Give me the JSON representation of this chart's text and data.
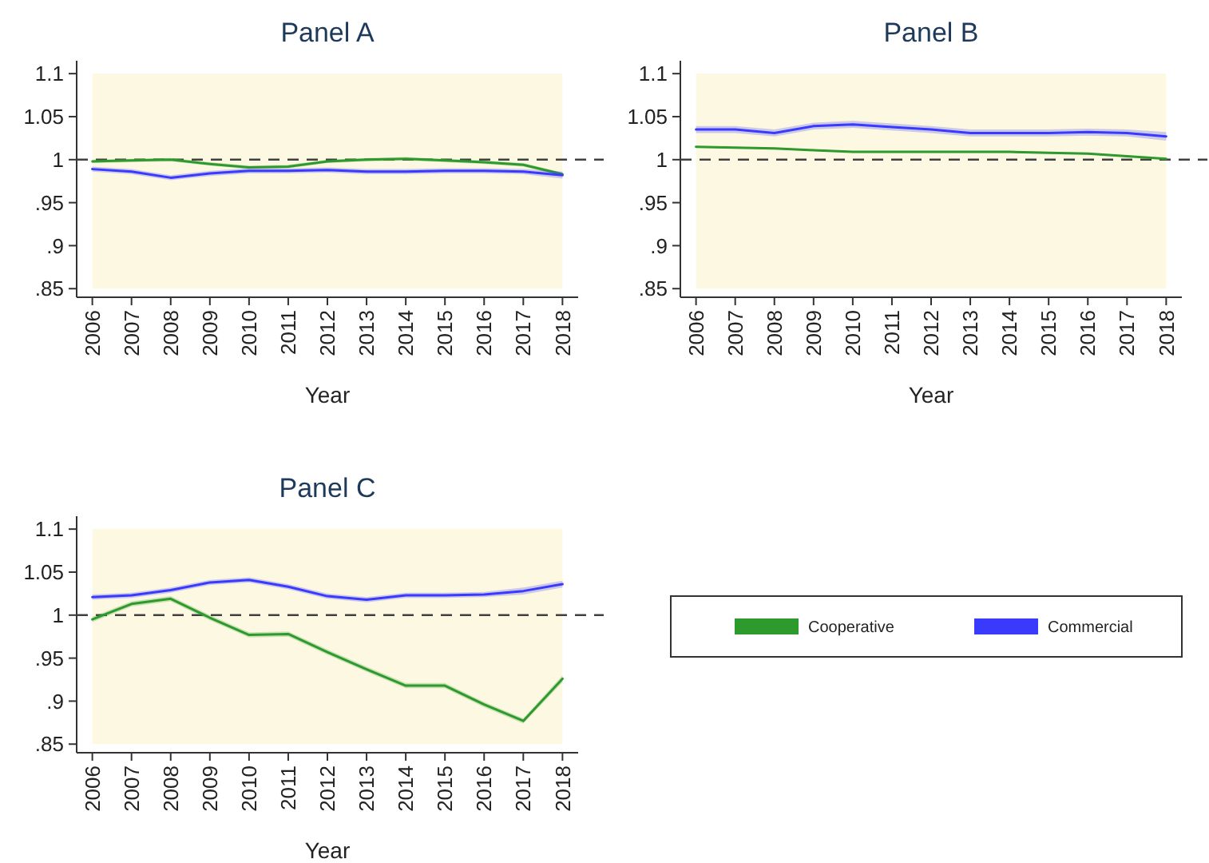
{
  "chart_data": [
    {
      "type": "line",
      "title": "Panel A",
      "xlabel": "Year",
      "x": [
        2006,
        2007,
        2008,
        2009,
        2010,
        2011,
        2012,
        2013,
        2014,
        2015,
        2016,
        2017,
        2018
      ],
      "xlim": [
        2005.6,
        2018.4
      ],
      "xticks": [
        2006,
        2007,
        2008,
        2009,
        2010,
        2011,
        2012,
        2013,
        2014,
        2015,
        2016,
        2017,
        2018
      ],
      "ylim": [
        0.84,
        1.115
      ],
      "yticks": [
        {
          "value": 0.85,
          "label": ".85"
        },
        {
          "value": 0.9,
          "label": ".9"
        },
        {
          "value": 0.95,
          "label": ".95"
        },
        1,
        1.05,
        1.1
      ],
      "grid": false,
      "legend": false,
      "line_style": "solid",
      "marker": "none",
      "ref_lines": [
        {
          "axis": "y",
          "value": 1,
          "color": "#404040",
          "line_style": "dashed"
        }
      ],
      "series": [
        {
          "color": "#2e9a2e",
          "values": [
            0.998,
            0.999,
            1.0,
            0.995,
            0.991,
            0.992,
            0.998,
            1.0,
            1.001,
            0.999,
            0.997,
            0.994,
            0.983
          ],
          "lower": [
            0.996,
            0.997,
            0.998,
            0.993,
            0.989,
            0.99,
            0.996,
            0.998,
            0.999,
            0.997,
            0.995,
            0.992,
            0.981
          ],
          "upper": [
            1.0,
            1.001,
            1.002,
            0.997,
            0.993,
            0.994,
            1.0,
            1.002,
            1.003,
            1.001,
            0.999,
            0.996,
            0.985
          ]
        },
        {
          "color": "#3a3aff",
          "values": [
            0.989,
            0.986,
            0.979,
            0.984,
            0.987,
            0.987,
            0.988,
            0.986,
            0.986,
            0.987,
            0.987,
            0.986,
            0.982
          ],
          "lower": [
            0.986,
            0.983,
            0.976,
            0.981,
            0.984,
            0.984,
            0.985,
            0.983,
            0.983,
            0.984,
            0.984,
            0.983,
            0.978
          ],
          "upper": [
            0.992,
            0.989,
            0.982,
            0.987,
            0.99,
            0.99,
            0.991,
            0.989,
            0.989,
            0.99,
            0.99,
            0.989,
            0.986
          ]
        }
      ]
    },
    {
      "type": "line",
      "title": "Panel B",
      "xlabel": "Year",
      "x": [
        2006,
        2007,
        2008,
        2009,
        2010,
        2011,
        2012,
        2013,
        2014,
        2015,
        2016,
        2017,
        2018
      ],
      "xlim": [
        2005.6,
        2018.4
      ],
      "xticks": [
        2006,
        2007,
        2008,
        2009,
        2010,
        2011,
        2012,
        2013,
        2014,
        2015,
        2016,
        2017,
        2018
      ],
      "ylim": [
        0.84,
        1.115
      ],
      "yticks": [
        {
          "value": 0.85,
          "label": ".85"
        },
        {
          "value": 0.9,
          "label": ".9"
        },
        {
          "value": 0.95,
          "label": ".95"
        },
        1,
        1.05,
        1.1
      ],
      "grid": false,
      "legend": false,
      "line_style": "solid",
      "marker": "none",
      "ref_lines": [
        {
          "axis": "y",
          "value": 1,
          "color": "#404040",
          "line_style": "dashed"
        }
      ],
      "series": [
        {
          "color": "#2e9a2e",
          "values": [
            1.015,
            1.014,
            1.013,
            1.011,
            1.009,
            1.009,
            1.009,
            1.009,
            1.009,
            1.008,
            1.007,
            1.004,
            1.001
          ],
          "lower": [
            1.014,
            1.013,
            1.012,
            1.01,
            1.008,
            1.008,
            1.008,
            1.008,
            1.008,
            1.007,
            1.006,
            1.003,
            1.0
          ],
          "upper": [
            1.016,
            1.015,
            1.014,
            1.012,
            1.01,
            1.01,
            1.01,
            1.01,
            1.01,
            1.009,
            1.008,
            1.005,
            1.002
          ]
        },
        {
          "color": "#3a3aff",
          "values": [
            1.035,
            1.035,
            1.031,
            1.039,
            1.041,
            1.038,
            1.035,
            1.031,
            1.031,
            1.031,
            1.032,
            1.031,
            1.027
          ],
          "lower": [
            1.031,
            1.031,
            1.027,
            1.035,
            1.037,
            1.034,
            1.031,
            1.027,
            1.027,
            1.027,
            1.028,
            1.027,
            1.022
          ],
          "upper": [
            1.039,
            1.039,
            1.035,
            1.043,
            1.045,
            1.042,
            1.039,
            1.035,
            1.035,
            1.035,
            1.036,
            1.035,
            1.032
          ]
        }
      ]
    },
    {
      "type": "line",
      "title": "Panel C",
      "xlabel": "Year",
      "x": [
        2006,
        2007,
        2008,
        2009,
        2010,
        2011,
        2012,
        2013,
        2014,
        2015,
        2016,
        2017,
        2018
      ],
      "xlim": [
        2005.6,
        2018.4
      ],
      "xticks": [
        2006,
        2007,
        2008,
        2009,
        2010,
        2011,
        2012,
        2013,
        2014,
        2015,
        2016,
        2017,
        2018
      ],
      "ylim": [
        0.84,
        1.115
      ],
      "yticks": [
        {
          "value": 0.85,
          "label": ".85"
        },
        {
          "value": 0.9,
          "label": ".9"
        },
        {
          "value": 0.95,
          "label": ".95"
        },
        1,
        1.05,
        1.1
      ],
      "grid": false,
      "legend": "right",
      "line_style": "solid",
      "marker": "none",
      "ref_lines": [
        {
          "axis": "y",
          "value": 1,
          "color": "#404040",
          "line_style": "dashed"
        }
      ],
      "series": [
        {
          "name": "Cooperative",
          "color": "#2e9a2e",
          "values": [
            0.995,
            1.013,
            1.019,
            0.997,
            0.977,
            0.978,
            0.957,
            0.937,
            0.918,
            0.918,
            0.896,
            0.877,
            0.926
          ],
          "lower": [
            0.992,
            1.01,
            1.016,
            0.994,
            0.974,
            0.975,
            0.954,
            0.934,
            0.915,
            0.915,
            0.893,
            0.874,
            0.922
          ],
          "upper": [
            0.998,
            1.016,
            1.022,
            1.0,
            0.98,
            0.981,
            0.96,
            0.94,
            0.921,
            0.921,
            0.899,
            0.88,
            0.93
          ]
        },
        {
          "name": "Commercial",
          "color": "#3a3aff",
          "values": [
            1.021,
            1.023,
            1.029,
            1.038,
            1.041,
            1.033,
            1.022,
            1.018,
            1.023,
            1.023,
            1.024,
            1.028,
            1.036
          ],
          "lower": [
            1.018,
            1.02,
            1.026,
            1.035,
            1.038,
            1.03,
            1.019,
            1.015,
            1.02,
            1.02,
            1.021,
            1.024,
            1.032
          ],
          "upper": [
            1.024,
            1.026,
            1.032,
            1.041,
            1.044,
            1.036,
            1.025,
            1.021,
            1.026,
            1.026,
            1.027,
            1.032,
            1.04
          ]
        }
      ]
    }
  ]
}
